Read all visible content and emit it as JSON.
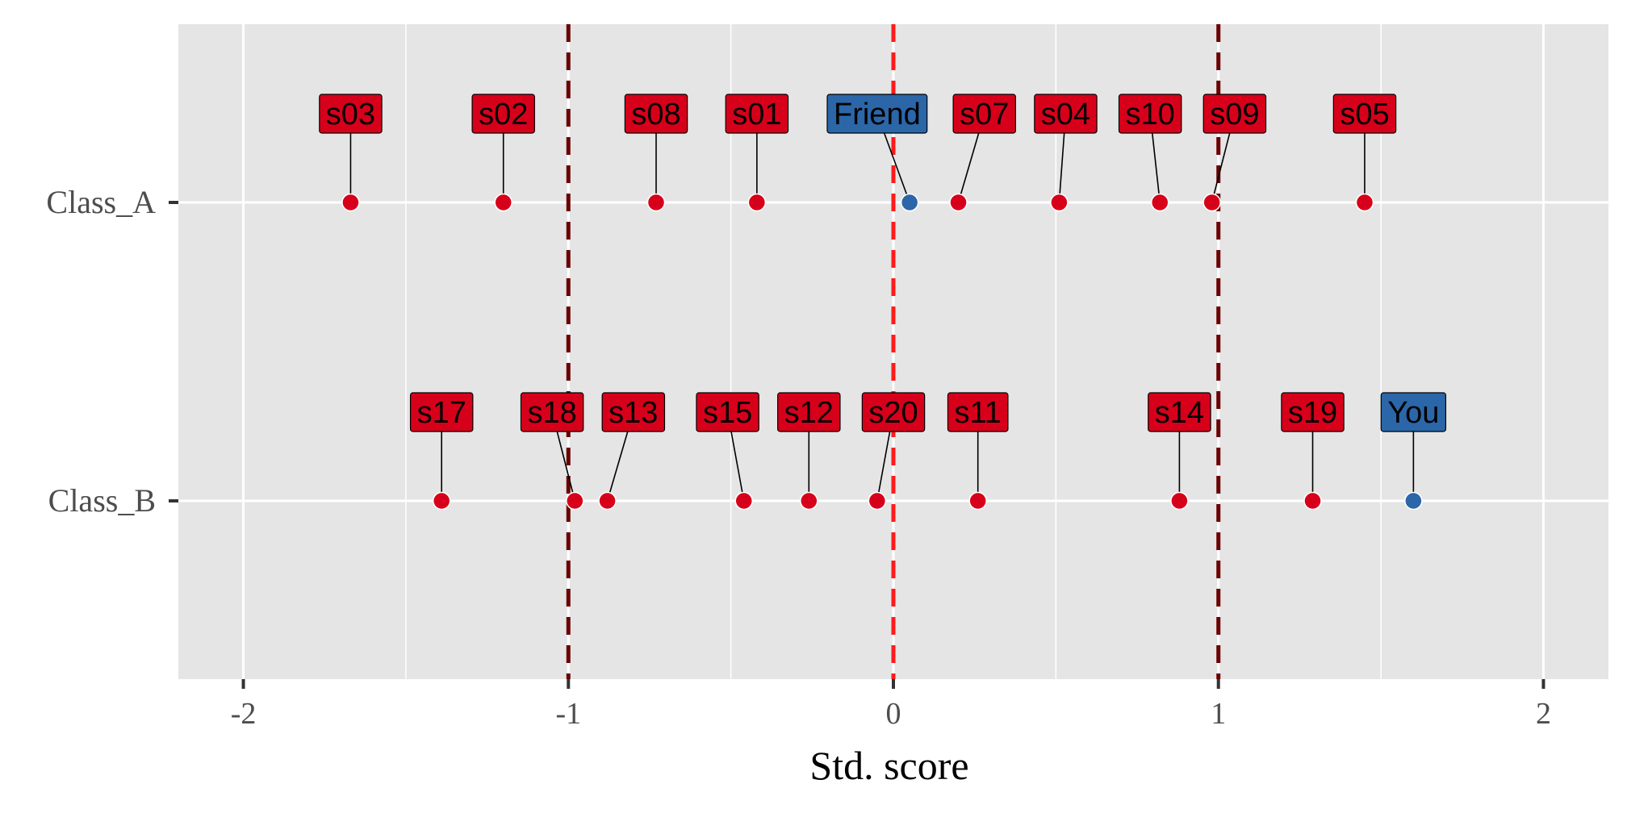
{
  "chart_data": {
    "type": "scatter",
    "title": "",
    "xlabel": "Std. score",
    "ylabel": "",
    "xlim": [
      -2.2,
      2.2
    ],
    "x_ticks": [
      -2,
      -1,
      0,
      1,
      2
    ],
    "x_tick_labels": [
      "-2",
      "-1",
      "0",
      "1",
      "2"
    ],
    "categories": [
      "Class_A",
      "Class_B"
    ],
    "grid": true,
    "legend": "none",
    "reference_lines": [
      {
        "x": -1,
        "style": "dashed",
        "color": "#6b0000"
      },
      {
        "x": 0,
        "style": "dashed",
        "color": "#ff1a1a"
      },
      {
        "x": 1,
        "style": "dashed",
        "color": "#6b0000"
      }
    ],
    "colors": {
      "student": "#d7001a",
      "highlight": "#2b66a8",
      "panel": "#e5e5e5",
      "grid": "#ffffff"
    },
    "points": [
      {
        "label": "s03",
        "category": "Class_A",
        "x": -1.67,
        "label_x": -1.67,
        "group": "student"
      },
      {
        "label": "s02",
        "category": "Class_A",
        "x": -1.2,
        "label_x": -1.2,
        "group": "student"
      },
      {
        "label": "s08",
        "category": "Class_A",
        "x": -0.73,
        "label_x": -0.73,
        "group": "student"
      },
      {
        "label": "s01",
        "category": "Class_A",
        "x": -0.42,
        "label_x": -0.42,
        "group": "student"
      },
      {
        "label": "Friend",
        "category": "Class_A",
        "x": 0.05,
        "label_x": -0.05,
        "group": "highlight"
      },
      {
        "label": "s07",
        "category": "Class_A",
        "x": 0.2,
        "label_x": 0.28,
        "group": "student"
      },
      {
        "label": "s04",
        "category": "Class_A",
        "x": 0.51,
        "label_x": 0.53,
        "group": "student"
      },
      {
        "label": "s10",
        "category": "Class_A",
        "x": 0.82,
        "label_x": 0.79,
        "group": "student"
      },
      {
        "label": "s09",
        "category": "Class_A",
        "x": 0.98,
        "label_x": 1.05,
        "group": "student"
      },
      {
        "label": "s05",
        "category": "Class_A",
        "x": 1.45,
        "label_x": 1.45,
        "group": "student"
      },
      {
        "label": "s17",
        "category": "Class_B",
        "x": -1.39,
        "label_x": -1.39,
        "group": "student"
      },
      {
        "label": "s18",
        "category": "Class_B",
        "x": -0.98,
        "label_x": -1.05,
        "group": "student"
      },
      {
        "label": "s13",
        "category": "Class_B",
        "x": -0.88,
        "label_x": -0.8,
        "group": "student"
      },
      {
        "label": "s15",
        "category": "Class_B",
        "x": -0.46,
        "label_x": -0.51,
        "group": "student"
      },
      {
        "label": "s12",
        "category": "Class_B",
        "x": -0.26,
        "label_x": -0.26,
        "group": "student"
      },
      {
        "label": "s20",
        "category": "Class_B",
        "x": -0.05,
        "label_x": 0.0,
        "group": "student"
      },
      {
        "label": "s11",
        "category": "Class_B",
        "x": 0.26,
        "label_x": 0.26,
        "group": "student"
      },
      {
        "label": "s14",
        "category": "Class_B",
        "x": 0.88,
        "label_x": 0.88,
        "group": "student"
      },
      {
        "label": "s19",
        "category": "Class_B",
        "x": 1.29,
        "label_x": 1.29,
        "group": "student"
      },
      {
        "label": "You",
        "category": "Class_B",
        "x": 1.6,
        "label_x": 1.6,
        "group": "highlight"
      }
    ]
  }
}
